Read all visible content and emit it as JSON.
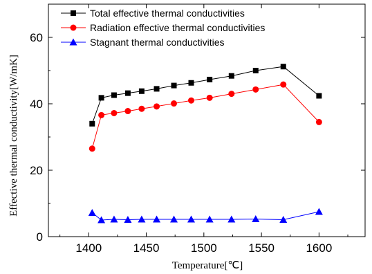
{
  "chart_data": {
    "type": "line",
    "title": "",
    "xlabel": "Temperature[℃]",
    "ylabel": "Effective thermal conductivity[W/mK]",
    "xlim": [
      1365,
      1640
    ],
    "ylim": [
      0,
      70
    ],
    "xticks": [
      1400,
      1450,
      1500,
      1550,
      1600
    ],
    "yticks": [
      0,
      20,
      40,
      60
    ],
    "x": [
      1403,
      1411,
      1422,
      1434,
      1446,
      1459,
      1474,
      1489,
      1505,
      1524,
      1545,
      1569,
      1600
    ],
    "series": [
      {
        "name": "Total effective thermal conductivities",
        "color": "#000000",
        "marker": "square",
        "values": [
          34.0,
          41.8,
          42.6,
          43.2,
          43.8,
          44.5,
          45.5,
          46.3,
          47.3,
          48.4,
          50.0,
          51.2,
          42.4
        ]
      },
      {
        "name": "Radiation effective thermal conductivities",
        "color": "#ff0000",
        "marker": "circle",
        "values": [
          26.5,
          36.6,
          37.2,
          37.8,
          38.5,
          39.2,
          40.1,
          41.0,
          41.8,
          43.0,
          44.3,
          45.8,
          34.5
        ]
      },
      {
        "name": "Stagnant thermal conductivities",
        "color": "#0000ff",
        "marker": "triangle",
        "values": [
          7.2,
          5.0,
          5.2,
          5.1,
          5.2,
          5.2,
          5.2,
          5.2,
          5.2,
          5.2,
          5.3,
          5.1,
          7.5
        ]
      }
    ],
    "legend_position": "top-left",
    "grid": false
  }
}
